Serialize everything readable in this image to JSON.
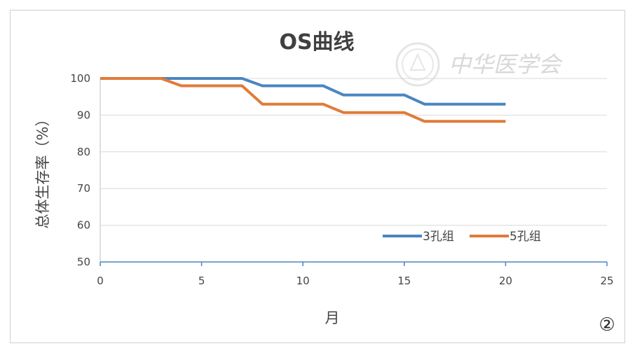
{
  "chart_data": {
    "type": "line",
    "title": "OS曲线",
    "xlabel": "月",
    "ylabel": "总体生存率（%）",
    "xlim": [
      0,
      25
    ],
    "ylim": [
      50,
      100
    ],
    "x_ticks": [
      "0",
      "5",
      "10",
      "15",
      "20",
      "25"
    ],
    "y_ticks": [
      "50",
      "60",
      "70",
      "80",
      "90",
      "100"
    ],
    "grid": "horizontal",
    "legend_position": "bottom-right",
    "series": [
      {
        "name": "3孔组",
        "color": "#4a86c0",
        "points": [
          [
            0,
            100
          ],
          [
            7,
            100
          ],
          [
            8,
            98
          ],
          [
            11,
            98
          ],
          [
            12,
            95.5
          ],
          [
            15,
            95.5
          ],
          [
            16,
            93
          ],
          [
            20,
            93
          ]
        ]
      },
      {
        "name": "5孔组",
        "color": "#e07b39",
        "points": [
          [
            0,
            100
          ],
          [
            3,
            100
          ],
          [
            4,
            98
          ],
          [
            7,
            98
          ],
          [
            8,
            93
          ],
          [
            11,
            93
          ],
          [
            12,
            90.7
          ],
          [
            15,
            90.7
          ],
          [
            16,
            88.3
          ],
          [
            20,
            88.3
          ]
        ]
      }
    ]
  },
  "watermark_text": "中华医学会",
  "panel_number": "②"
}
